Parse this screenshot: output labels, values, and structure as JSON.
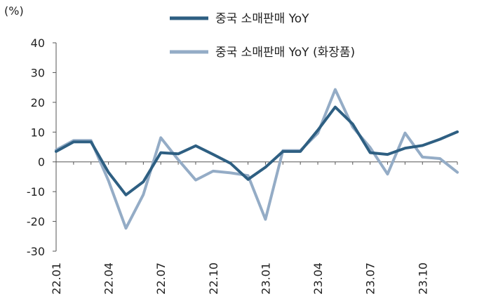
{
  "chart_data": {
    "type": "line",
    "unit_label": "(%)",
    "ylim": [
      -30,
      40
    ],
    "yticks": [
      40,
      30,
      20,
      10,
      0,
      -10,
      -20,
      -30
    ],
    "x_tick_labels": [
      "22.01",
      "22.04",
      "22.07",
      "22.10",
      "23.01",
      "23.04",
      "23.07",
      "23.10"
    ],
    "x_tick_every": 3,
    "n_points": 24,
    "legend_position": "top-center",
    "series": [
      {
        "name": "중국 소매판매 YoY",
        "color": "#2e5f82",
        "values": [
          3.5,
          6.7,
          6.7,
          -3.5,
          -11.1,
          -6.7,
          3.1,
          2.7,
          5.4,
          2.5,
          -0.5,
          -5.9,
          -1.8,
          3.5,
          3.5,
          10.6,
          18.4,
          12.7,
          3.1,
          2.5,
          4.6,
          5.5,
          7.6,
          10.1
        ]
      },
      {
        "name": "중국 소매판매 YoY (화장품)",
        "color": "#94acc6",
        "values": [
          4.0,
          7.2,
          7.2,
          -6.3,
          -22.3,
          -11.0,
          8.1,
          0.7,
          -6.1,
          -3.1,
          -3.7,
          -4.6,
          -19.3,
          3.8,
          3.8,
          9.6,
          24.3,
          11.7,
          4.8,
          -4.1,
          9.7,
          1.6,
          1.1,
          -3.5
        ]
      }
    ]
  }
}
